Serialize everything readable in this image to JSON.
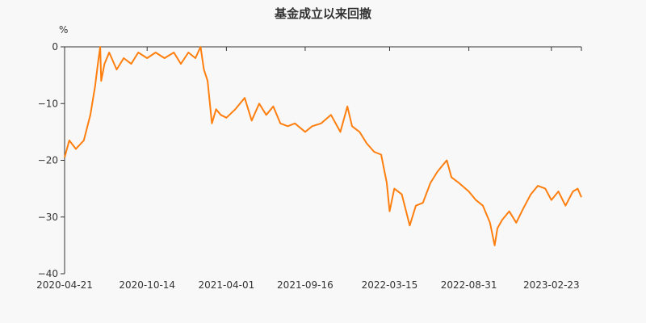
{
  "chart_data": {
    "type": "line",
    "title": "基金成立以来回撤",
    "ylabel": "%",
    "ylim": [
      -40,
      0
    ],
    "yticks": [
      0,
      -10,
      -20,
      -30,
      -40
    ],
    "x_range": [
      "2020-04-21",
      "2023-04-28"
    ],
    "xticks": [
      "2020-04-21",
      "2020-10-14",
      "2021-04-01",
      "2021-09-16",
      "2022-03-15",
      "2022-08-31",
      "2023-02-23"
    ],
    "grid": false,
    "colors": {
      "line": "#ff7f0e",
      "axis": "#333333"
    },
    "series": [
      {
        "x": [
          "2020-04-21",
          "2020-05-01",
          "2020-05-15",
          "2020-06-01",
          "2020-06-15",
          "2020-06-25",
          "2020-07-01",
          "2020-07-06",
          "2020-07-08",
          "2020-07-15",
          "2020-07-25",
          "2020-08-10",
          "2020-08-25",
          "2020-09-10",
          "2020-09-25",
          "2020-10-14",
          "2020-11-01",
          "2020-11-20",
          "2020-12-10",
          "2020-12-25",
          "2021-01-10",
          "2021-01-25",
          "2021-02-05",
          "2021-02-12",
          "2021-02-20",
          "2021-03-01",
          "2021-03-10",
          "2021-03-20",
          "2021-04-01",
          "2021-04-20",
          "2021-05-10",
          "2021-05-25",
          "2021-06-10",
          "2021-06-25",
          "2021-07-10",
          "2021-07-25",
          "2021-08-10",
          "2021-08-25",
          "2021-09-16",
          "2021-10-01",
          "2021-10-20",
          "2021-11-10",
          "2021-11-30",
          "2021-12-15",
          "2021-12-25",
          "2022-01-10",
          "2022-01-25",
          "2022-02-10",
          "2022-02-25",
          "2022-03-09",
          "2022-03-15",
          "2022-03-25",
          "2022-04-10",
          "2022-04-27",
          "2022-05-10",
          "2022-05-25",
          "2022-06-10",
          "2022-06-25",
          "2022-07-05",
          "2022-07-15",
          "2022-07-25",
          "2022-08-10",
          "2022-08-31",
          "2022-09-15",
          "2022-09-30",
          "2022-10-15",
          "2022-10-25",
          "2022-10-31",
          "2022-11-10",
          "2022-11-25",
          "2022-12-10",
          "2022-12-25",
          "2023-01-10",
          "2023-01-25",
          "2023-02-10",
          "2023-02-23",
          "2023-03-10",
          "2023-03-25",
          "2023-04-10",
          "2023-04-20",
          "2023-04-28"
        ],
        "values": [
          -19.5,
          -16.5,
          -18,
          -16.5,
          -12,
          -7,
          -3,
          0,
          -6,
          -3,
          -1,
          -4,
          -2,
          -3,
          -1,
          -2,
          -1,
          -2,
          -1,
          -3,
          -1,
          -2,
          0,
          -4,
          -6,
          -13.5,
          -11,
          -12,
          -12.5,
          -11,
          -9,
          -13,
          -10,
          -12,
          -10.5,
          -13.5,
          -14,
          -13.5,
          -15,
          -14,
          -13.5,
          -12,
          -15,
          -10.5,
          -14,
          -15,
          -17,
          -18.5,
          -19,
          -24,
          -29,
          -25,
          -26,
          -31.5,
          -28,
          -27.5,
          -24,
          -22,
          -21,
          -20,
          -23,
          -24,
          -25.5,
          -27,
          -28,
          -31,
          -35,
          -32,
          -30.5,
          -29,
          -31,
          -28.5,
          -26,
          -24.5,
          -25,
          -27,
          -25.5,
          -28,
          -25.5,
          -25,
          -26.5
        ]
      }
    ]
  }
}
